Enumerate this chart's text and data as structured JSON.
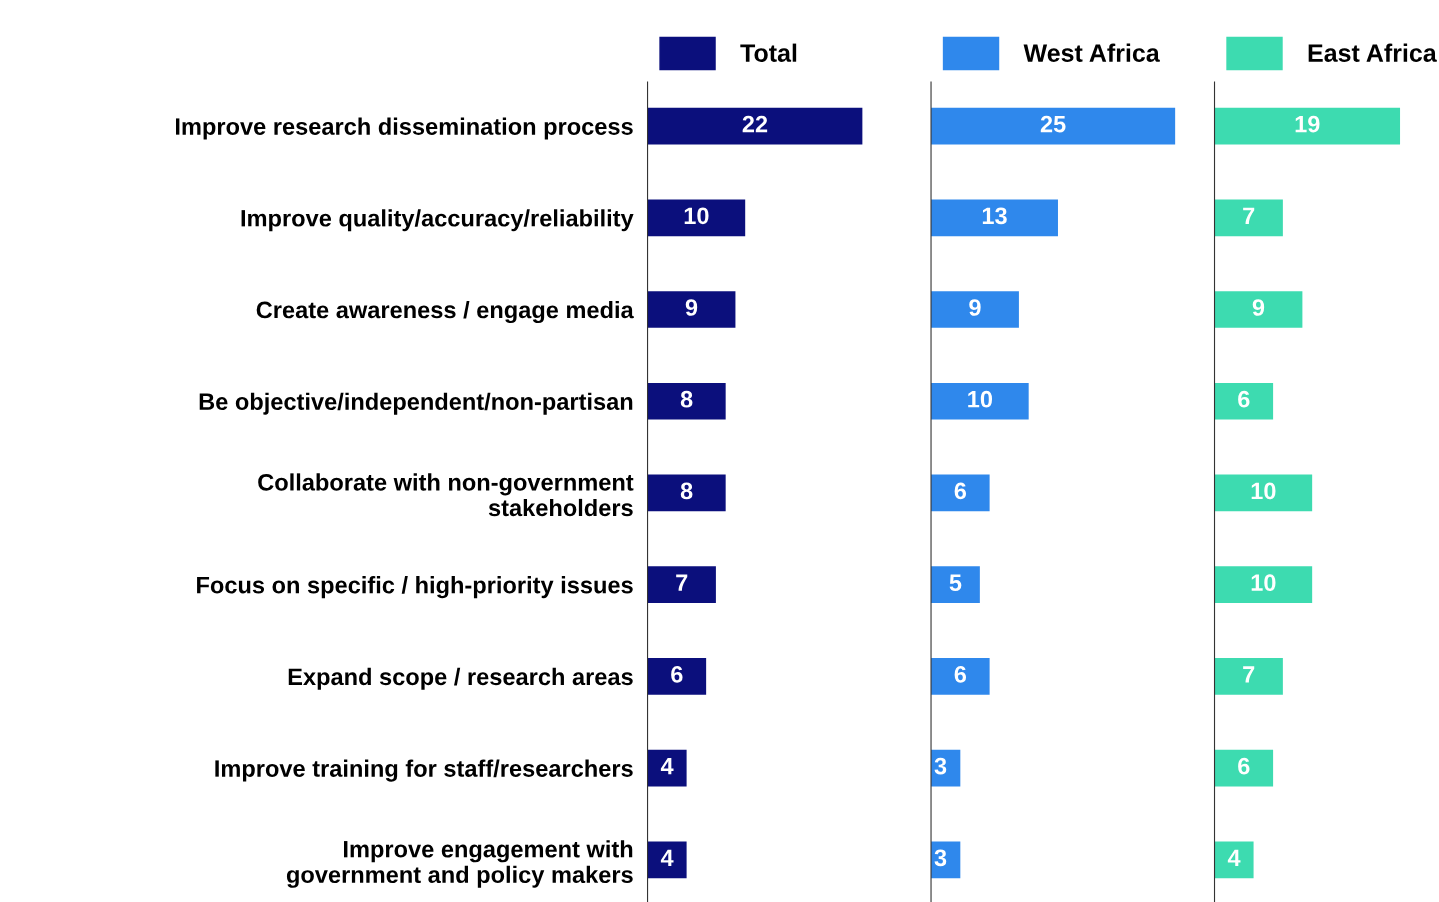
{
  "chart_data": [
    {
      "type": "bar",
      "orientation": "horizontal",
      "categories": [
        "Improve research dissemination process",
        "Improve quality/accuracy/reliability",
        "Create awareness / engage media",
        "Be objective/independent/non-partisan",
        "Collaborate with non-government\nstakeholders",
        "Focus on specific / high-priority issues",
        "Expand scope / research areas",
        "Improve training for staff/researchers",
        "Improve engagement with\ngovernment and policy makers"
      ],
      "tick_labels": "y",
      "data_labels": true,
      "legend": "top",
      "grid": false,
      "series": [
        {
          "name": "Total",
          "color": "#0b0f7c",
          "values": [
            22,
            10,
            9,
            8,
            8,
            7,
            6,
            4,
            4
          ]
        }
      ]
    },
    {
      "type": "bar",
      "orientation": "horizontal",
      "categories": [
        null,
        null,
        null,
        null,
        null,
        null,
        null,
        null,
        null
      ],
      "data_labels": true,
      "legend": "top",
      "grid": false,
      "series": [
        {
          "name": "West Africa",
          "color": "#2f88ec",
          "values": [
            25,
            13,
            9,
            10,
            6,
            5,
            6,
            3,
            3
          ]
        }
      ]
    },
    {
      "type": "bar",
      "orientation": "horizontal",
      "categories": [
        null,
        null,
        null,
        null,
        null,
        null,
        null,
        null,
        null
      ],
      "data_labels": true,
      "legend": "top",
      "grid": false,
      "series": [
        {
          "name": "East Africa",
          "color": "#3ddbb0",
          "values": [
            19,
            7,
            9,
            6,
            10,
            10,
            7,
            6,
            4
          ]
        }
      ]
    }
  ]
}
